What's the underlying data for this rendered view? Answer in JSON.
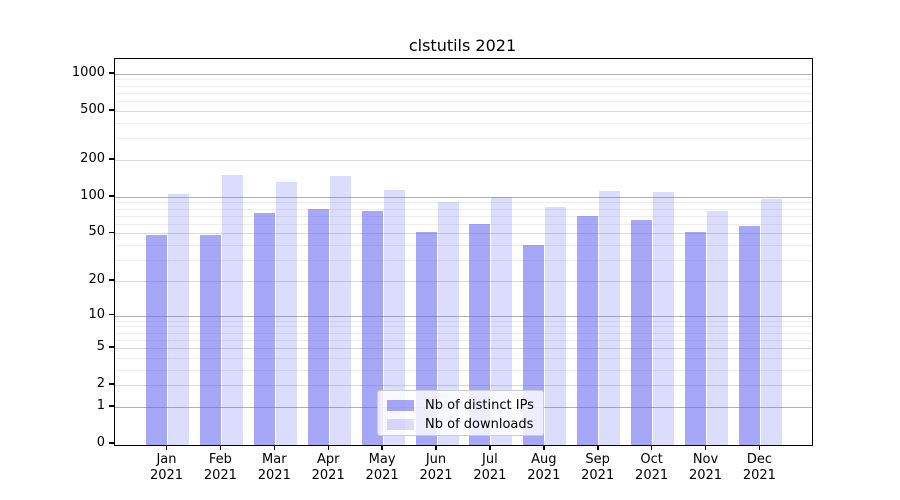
{
  "title": "clstutils 2021",
  "chart_data": {
    "type": "bar",
    "title": "clstutils 2021",
    "categories": [
      "Jan 2021",
      "Feb 2021",
      "Mar 2021",
      "Apr 2021",
      "May 2021",
      "Jun 2021",
      "Jul 2021",
      "Aug 2021",
      "Sep 2021",
      "Oct 2021",
      "Nov 2021",
      "Dec 2021"
    ],
    "series": [
      {
        "name": "Nb of distinct IPs",
        "color": "rgba(95,95,240,0.55)",
        "values": [
          48,
          48,
          73,
          80,
          76,
          51,
          60,
          40,
          70,
          65,
          51,
          57
        ]
      },
      {
        "name": "Nb of downloads",
        "color": "rgba(95,95,240,0.22)",
        "values": [
          105,
          150,
          132,
          148,
          114,
          90,
          100,
          82,
          112,
          109,
          76,
          96
        ]
      }
    ],
    "xlabel": "",
    "ylabel": "",
    "yscale": "log1p",
    "y_ticks": [
      0,
      1,
      2,
      5,
      10,
      20,
      50,
      100,
      200,
      500,
      1000
    ],
    "ylim": [
      0,
      1320
    ],
    "grid": true,
    "legend_position": "lower center",
    "grid_colors": {
      "decade": "#b3b3b3",
      "labeled": "#d9d9d9",
      "minor": "#ededed"
    },
    "minor_gridlines": [
      3,
      4,
      6,
      7,
      8,
      9,
      30,
      40,
      60,
      70,
      80,
      90,
      300,
      400,
      600,
      700,
      800,
      900
    ],
    "mid_gridlines": [
      2,
      5,
      20,
      50,
      200,
      500
    ],
    "decade_gridlines": [
      1,
      10,
      100,
      1000
    ]
  }
}
